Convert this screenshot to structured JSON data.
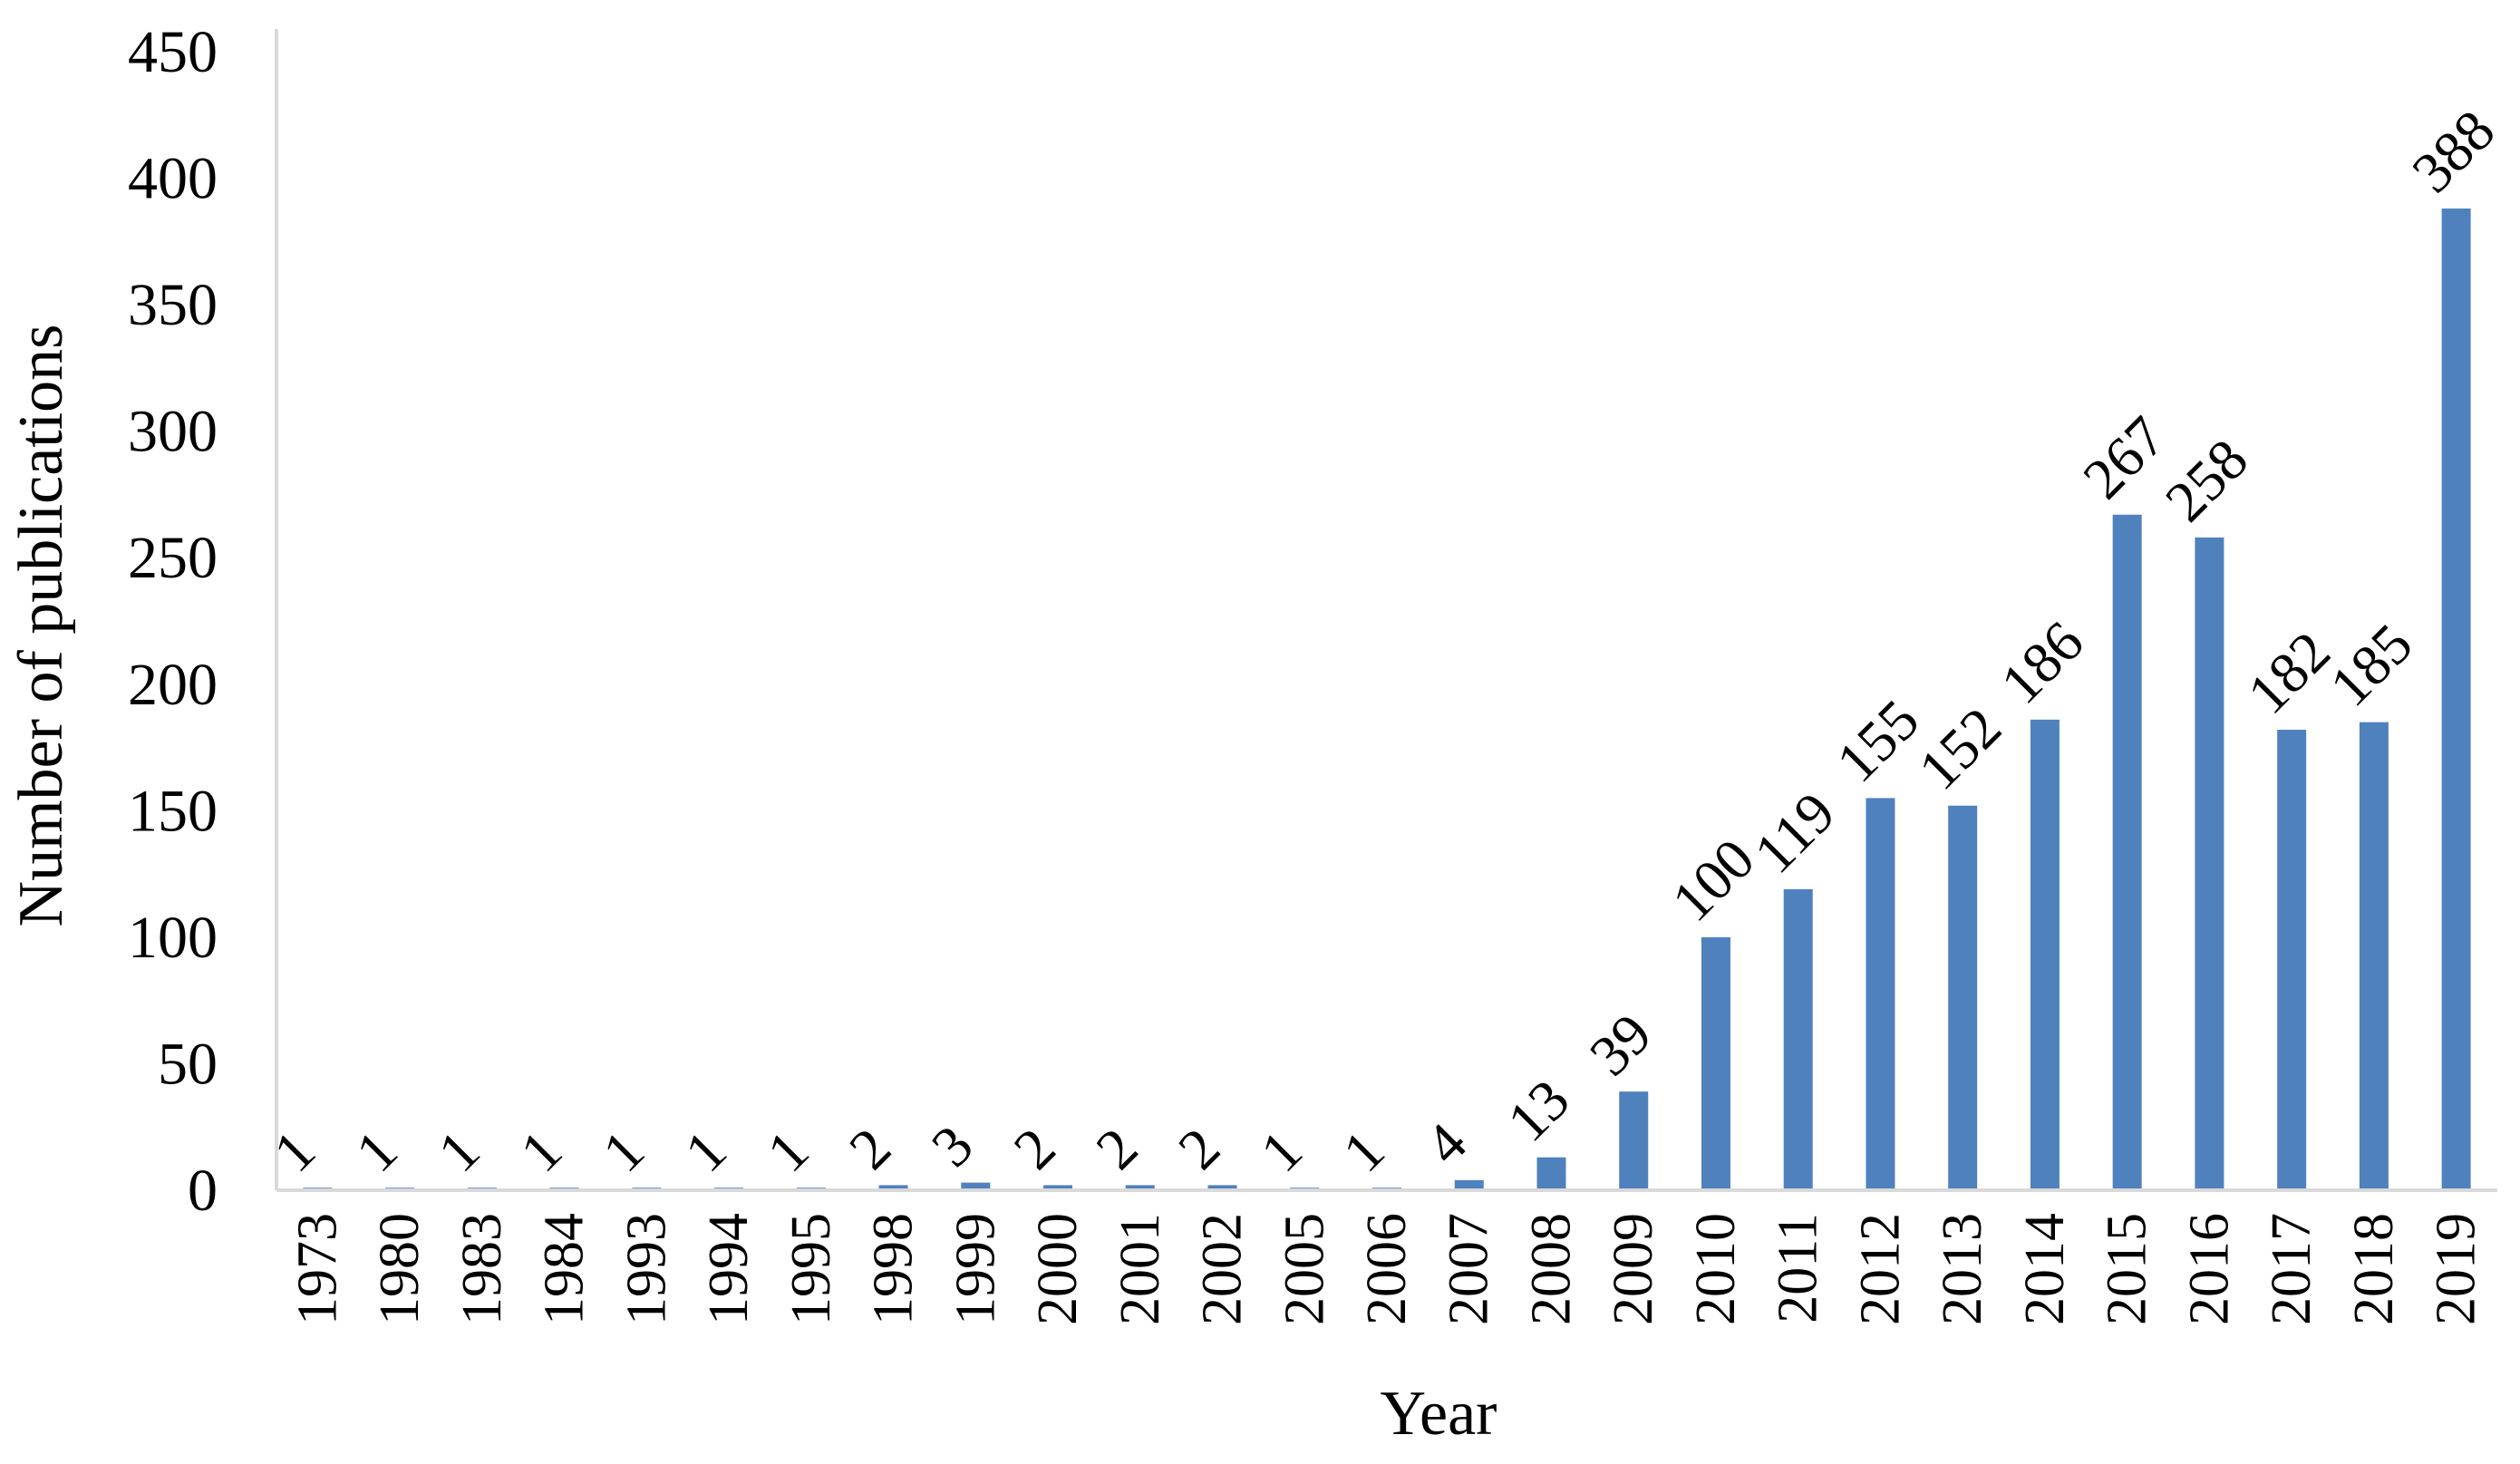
{
  "chart_data": {
    "type": "bar",
    "title": "",
    "xlabel": "Year",
    "ylabel": "Number of publications",
    "categories": [
      "1973",
      "1980",
      "1983",
      "1984",
      "1993",
      "1994",
      "1995",
      "1998",
      "1999",
      "2000",
      "2001",
      "2002",
      "2005",
      "2006",
      "2007",
      "2008",
      "2009",
      "2010",
      "2011",
      "2012",
      "2013",
      "2014",
      "2015",
      "2016",
      "2017",
      "2018",
      "2019"
    ],
    "values": [
      1,
      1,
      1,
      1,
      1,
      1,
      1,
      2,
      3,
      2,
      2,
      2,
      1,
      1,
      4,
      13,
      39,
      100,
      119,
      155,
      152,
      186,
      267,
      258,
      182,
      185,
      388
    ],
    "ylim": [
      0,
      450
    ],
    "yticks": [
      "0",
      "50",
      "100",
      "150",
      "200",
      "250",
      "300",
      "350",
      "400",
      "450"
    ],
    "grid": false,
    "legend": "none",
    "colors": {
      "bar": "#4F81BD",
      "axis": "#D9D9D9",
      "text": "#000000"
    }
  }
}
